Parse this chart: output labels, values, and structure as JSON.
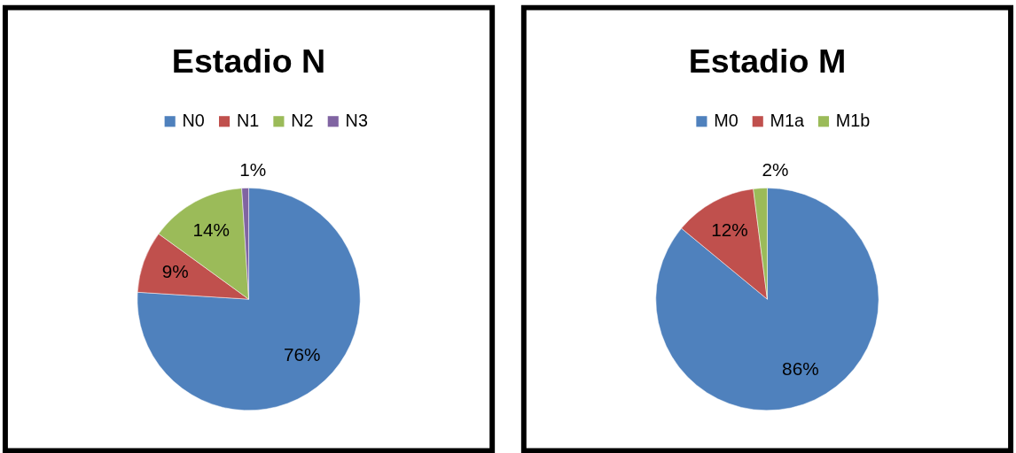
{
  "chart_data": [
    {
      "type": "pie",
      "title": "Estadio N",
      "categories": [
        "N0",
        "N1",
        "N2",
        "N3"
      ],
      "values": [
        76,
        9,
        14,
        1
      ],
      "colors": [
        "#4f81bd",
        "#c0504d",
        "#9bbb59",
        "#8064a2"
      ],
      "value_labels": [
        "76%",
        "9%",
        "14%",
        "1%"
      ],
      "legend": "top"
    },
    {
      "type": "pie",
      "title": "Estadio M",
      "categories": [
        "M0",
        "M1a",
        "M1b"
      ],
      "values": [
        86,
        12,
        2
      ],
      "colors": [
        "#4f81bd",
        "#c0504d",
        "#9bbb59"
      ],
      "value_labels": [
        "86%",
        "12%",
        "2%"
      ],
      "legend": "top"
    }
  ]
}
